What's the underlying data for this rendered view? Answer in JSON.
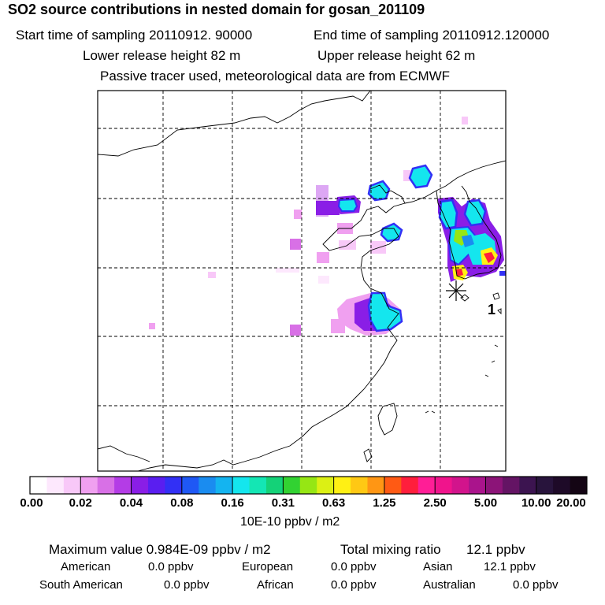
{
  "header": {
    "title": "SO2 source contributions in nested domain for gosan_201109",
    "start_label": "Start time of sampling 20110912. 90000",
    "end_label": "End time of sampling 20110912.120000",
    "lower_label": "Lower release height   82 m",
    "upper_label": "Upper release height   62 m",
    "info": "Passive tracer used, meteorological data are from ECMWF"
  },
  "map": {
    "site_marker_label": "1",
    "colors": [
      "#fde8fd",
      "#f8c8f8",
      "#f0a0f0",
      "#d870e6",
      "#b43ce6",
      "#8a1ee6",
      "#5a1ef0",
      "#3230f5",
      "#1f58f5",
      "#1a8cf0",
      "#14b4f0",
      "#14e6ee",
      "#14e6b4",
      "#14d278",
      "#32d232",
      "#96e614",
      "#dcf014",
      "#fff014",
      "#ffc814",
      "#ff9614",
      "#ff5a14",
      "#ff1e3c",
      "#ff1e96",
      "#f0148c",
      "#d2148c",
      "#aa148c",
      "#8c1478",
      "#50143c"
    ]
  },
  "colorbar": {
    "ticks": [
      "0.00",
      "0.02",
      "0.04",
      "0.08",
      "0.16",
      "0.31",
      "0.63",
      "1.25",
      "2.50",
      "5.00",
      "10.00",
      "20.00"
    ],
    "units": "10E-10 ppbv / m2",
    "colors": [
      "#ffffff",
      "#fde8fd",
      "#f8c8f8",
      "#f0a0f0",
      "#d870e6",
      "#b43ce6",
      "#8a1ee6",
      "#5a1ef0",
      "#3230f5",
      "#1f58f5",
      "#1a8cf0",
      "#14b4f0",
      "#14e6ee",
      "#14e6b4",
      "#14d278",
      "#32d232",
      "#96e614",
      "#dcf014",
      "#fff014",
      "#ffc814",
      "#ff9614",
      "#ff5a14",
      "#ff1e3c",
      "#ff1e96",
      "#f0148c",
      "#d2148c",
      "#aa148c",
      "#8c1478",
      "#641464",
      "#3c1450",
      "#28143c",
      "#1e0a28",
      "#140514"
    ]
  },
  "footer": {
    "max_label": "Maximum value  0.984E-09 ppbv / m2",
    "total_label": "Total mixing ratio",
    "total_value": "12.1 ppbv",
    "american_label": "American",
    "american_value": "0.0 ppbv",
    "european_label": "European",
    "european_value": "0.0 ppbv",
    "asian_label": "Asian",
    "asian_value": "12.1 ppbv",
    "south_american_label": "South American",
    "south_american_value": "0.0 ppbv",
    "african_label": "African",
    "african_value": "0.0 ppbv",
    "australian_label": "Australian",
    "australian_value": "0.0 ppbv"
  }
}
